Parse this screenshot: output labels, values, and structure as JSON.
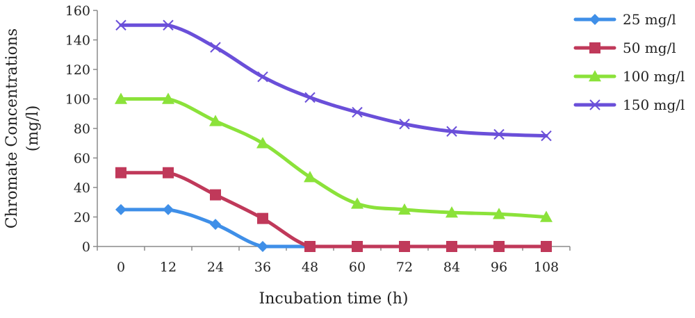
{
  "chart_data": {
    "type": "line",
    "x": [
      0,
      12,
      24,
      36,
      48,
      60,
      72,
      84,
      96,
      108
    ],
    "categories": [
      "0",
      "12",
      "24",
      "36",
      "48",
      "60",
      "72",
      "84",
      "96",
      "108"
    ],
    "xlabel": "Incubation time (h)",
    "ylabel_lines": [
      "Chromate Concentrations",
      "(mg/l)"
    ],
    "ylim": [
      0,
      160
    ],
    "yticks": [
      0,
      20,
      40,
      60,
      80,
      100,
      120,
      140,
      160
    ],
    "grid": false,
    "legend_position": "right",
    "series": [
      {
        "name": "25 mg/l",
        "color": "#3F8FE8",
        "marker": "diamond",
        "values": [
          25,
          25,
          15,
          0,
          0,
          null,
          null,
          null,
          null,
          null
        ]
      },
      {
        "name": "50 mg/l",
        "color": "#C0395A",
        "marker": "square",
        "values": [
          50,
          50,
          35,
          19,
          0,
          0,
          0,
          0,
          0,
          0
        ]
      },
      {
        "name": "100 mg/l",
        "color": "#8BE23A",
        "marker": "triangle",
        "values": [
          100,
          100,
          85,
          70,
          47,
          29,
          25,
          23,
          22,
          20
        ]
      },
      {
        "name": "150 mg/l",
        "color": "#6A4FD9",
        "marker": "x",
        "values": [
          150,
          150,
          135,
          115,
          101,
          91,
          83,
          78,
          76,
          75
        ]
      }
    ]
  }
}
